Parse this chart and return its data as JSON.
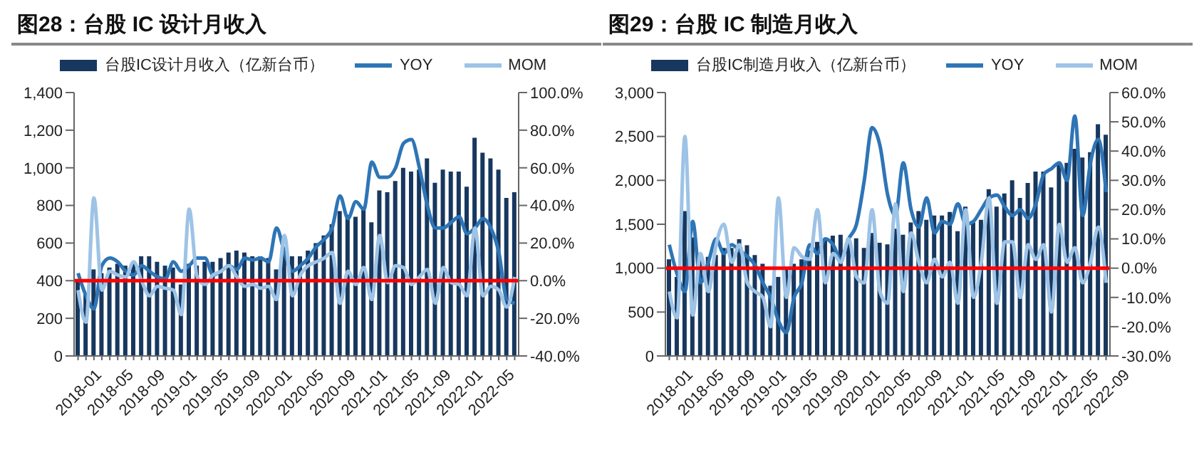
{
  "chart_data": [
    {
      "type": "bar",
      "title": "图28：台股 IC 设计月收入",
      "categories": [
        "2018-01",
        null,
        null,
        null,
        "2018-05",
        null,
        null,
        null,
        "2018-09",
        null,
        null,
        null,
        "2019-01",
        null,
        null,
        null,
        "2019-05",
        null,
        null,
        null,
        "2019-09",
        null,
        null,
        null,
        "2020-01",
        null,
        null,
        null,
        "2020-05",
        null,
        null,
        null,
        "2020-09",
        null,
        null,
        null,
        "2021-01",
        null,
        null,
        null,
        "2021-05",
        null,
        null,
        null,
        "2021-09",
        null,
        null,
        null,
        "2022-01",
        null,
        null,
        null,
        "2022-05",
        null,
        null,
        null
      ],
      "series": [
        {
          "name": "台股IC设计月收入（亿新台币）",
          "color": "#17375e",
          "values": [
            400,
            330,
            460,
            440,
            470,
            490,
            480,
            500,
            530,
            530,
            500,
            480,
            470,
            380,
            490,
            480,
            500,
            500,
            520,
            550,
            560,
            550,
            530,
            530,
            520,
            460,
            540,
            530,
            530,
            560,
            600,
            640,
            700,
            770,
            750,
            740,
            790,
            710,
            880,
            870,
            930,
            1000,
            980,
            990,
            1050,
            920,
            990,
            980,
            980,
            900,
            1160,
            1080,
            1050,
            990,
            840,
            870
          ]
        },
        {
          "name": "YOY",
          "type": "line",
          "axis": "y2",
          "color": "#2e75b6",
          "values": [
            4,
            -8,
            -15,
            8,
            12,
            10,
            5,
            3,
            8,
            5,
            2,
            1,
            10,
            5,
            8,
            12,
            12,
            3,
            5,
            8,
            6,
            12,
            11,
            12,
            10,
            28,
            15,
            5,
            8,
            12,
            18,
            22,
            28,
            45,
            33,
            42,
            38,
            63,
            55,
            55,
            60,
            73,
            75,
            60,
            40,
            28,
            28,
            31,
            34,
            25,
            28,
            33,
            28,
            15,
            -10,
            -12
          ]
        },
        {
          "name": "MOM",
          "type": "line",
          "axis": "y2",
          "color": "#9dc3e6",
          "values": [
            -5,
            -22,
            44,
            -5,
            5,
            3,
            2,
            10,
            0,
            -8,
            -3,
            -4,
            -5,
            -18,
            38,
            2,
            -2,
            3,
            5,
            8,
            2,
            -3,
            -2,
            -4,
            -3,
            -10,
            24,
            -8,
            3,
            8,
            10,
            12,
            15,
            -12,
            5,
            -2,
            7,
            -10,
            24,
            -1,
            8,
            7,
            -2,
            2,
            6,
            -12,
            7,
            -1,
            -2,
            -8,
            28,
            -8,
            -3,
            -5,
            -14,
            2
          ]
        }
      ],
      "ylim": [
        0,
        1400
      ],
      "yticks": [
        0,
        {
          "value": 200,
          "label": "200"
        },
        {
          "value": 400,
          "label": "400"
        },
        {
          "value": 600,
          "label": "600"
        },
        {
          "value": 800,
          "label": "800"
        },
        {
          "value": 1000,
          "label": "1,000"
        },
        {
          "value": 1200,
          "label": "1,200"
        },
        {
          "value": 1400,
          "label": "1,400"
        }
      ],
      "y2lim": [
        -40,
        100
      ],
      "y2ticks": [
        {
          "value": -40,
          "label": "-40.0%"
        },
        {
          "value": -20,
          "label": "-20.0%"
        },
        {
          "value": 0,
          "label": "0.0%"
        },
        {
          "value": 20,
          "label": "20.0%"
        },
        {
          "value": 40,
          "label": "40.0%"
        },
        {
          "value": 60,
          "label": "60.0%"
        },
        {
          "value": 80,
          "label": "80.0%"
        },
        {
          "value": 100,
          "label": "100.0%"
        }
      ],
      "ref_lines": [
        {
          "axis": "y2",
          "value": 0,
          "color": "#ff0000"
        }
      ],
      "legend": "top",
      "marker": "none"
    },
    {
      "type": "bar",
      "title": "图29：台股 IC 制造月收入",
      "categories": [
        "2018-01",
        null,
        null,
        null,
        "2018-05",
        null,
        null,
        null,
        "2018-09",
        null,
        null,
        null,
        "2019-01",
        null,
        null,
        null,
        "2019-05",
        null,
        null,
        null,
        "2019-09",
        null,
        null,
        null,
        "2020-01",
        null,
        null,
        null,
        "2020-05",
        null,
        null,
        null,
        "2020-09",
        null,
        null,
        null,
        "2021-01",
        null,
        null,
        null,
        "2021-05",
        null,
        null,
        null,
        "2021-09",
        null,
        null,
        null,
        "2022-01",
        null,
        null,
        null,
        "2022-05",
        null,
        null,
        null,
        "2022-09"
      ],
      "series": [
        {
          "name": "台股IC制造月收入（亿新台币）",
          "color": "#17375e",
          "values": [
            1100,
            900,
            1650,
            1350,
            1120,
            1130,
            1150,
            1230,
            1230,
            1330,
            1260,
            1150,
            1050,
            800,
            900,
            1000,
            1050,
            1100,
            1200,
            1300,
            1320,
            1370,
            1380,
            1340,
            1340,
            1230,
            1400,
            1290,
            1270,
            1450,
            1380,
            1520,
            1650,
            1550,
            1600,
            1600,
            1640,
            1420,
            1700,
            1520,
            1550,
            1900,
            1700,
            1850,
            2000,
            1800,
            1970,
            2100,
            2100,
            1920,
            2200,
            2200,
            2360,
            2260,
            2320,
            2640,
            2520
          ]
        },
        {
          "name": "YOY",
          "type": "line",
          "axis": "y2",
          "color": "#2e75b6",
          "values": [
            8,
            -2,
            -8,
            16,
            -5,
            2,
            10,
            5,
            8,
            6,
            4,
            1,
            -5,
            -10,
            -18,
            -22,
            -10,
            -5,
            8,
            5,
            10,
            8,
            3,
            10,
            15,
            30,
            48,
            42,
            25,
            18,
            36,
            20,
            14,
            24,
            12,
            16,
            15,
            22,
            15,
            16,
            20,
            24,
            25,
            21,
            18,
            20,
            17,
            22,
            32,
            34,
            36,
            30,
            52,
            18,
            36,
            44,
            26
          ]
        },
        {
          "name": "MOM",
          "type": "line",
          "axis": "y2",
          "color": "#9dc3e6",
          "values": [
            -8,
            -17,
            45,
            -16,
            5,
            -8,
            8,
            15,
            2,
            8,
            -5,
            -8,
            -10,
            -20,
            24,
            -10,
            7,
            4,
            3,
            20,
            -5,
            5,
            2,
            10,
            -3,
            -5,
            20,
            -8,
            -12,
            22,
            -8,
            12,
            2,
            -5,
            3,
            -3,
            2,
            -12,
            20,
            -10,
            2,
            24,
            -12,
            9,
            9,
            -10,
            8,
            3,
            8,
            -15,
            15,
            2,
            7,
            -5,
            2,
            14,
            -5
          ]
        }
      ],
      "ylim": [
        0,
        3000
      ],
      "yticks": [
        0,
        {
          "value": 500,
          "label": "500"
        },
        {
          "value": 1000,
          "label": "1,000"
        },
        {
          "value": 1500,
          "label": "1,500"
        },
        {
          "value": 2000,
          "label": "2,000"
        },
        {
          "value": 2500,
          "label": "2,500"
        },
        {
          "value": 3000,
          "label": "3,000"
        }
      ],
      "y2lim": [
        -30,
        60
      ],
      "y2ticks": [
        {
          "value": -30,
          "label": "-30.0%"
        },
        {
          "value": -20,
          "label": "-20.0%"
        },
        {
          "value": -10,
          "label": "-10.0%"
        },
        {
          "value": 0,
          "label": "0.0%"
        },
        {
          "value": 10,
          "label": "10.0%"
        },
        {
          "value": 20,
          "label": "20.0%"
        },
        {
          "value": 30,
          "label": "30.0%"
        },
        {
          "value": 40,
          "label": "40.0%"
        },
        {
          "value": 50,
          "label": "50.0%"
        },
        {
          "value": 60,
          "label": "60.0%"
        }
      ],
      "ref_lines": [
        {
          "axis": "y2",
          "value": 0,
          "color": "#ff0000"
        }
      ],
      "legend": "top",
      "marker": "none"
    }
  ]
}
